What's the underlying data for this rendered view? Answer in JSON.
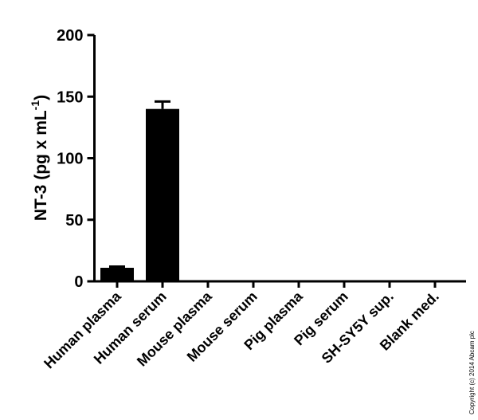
{
  "chart_data": {
    "type": "bar",
    "y_label_parts": [
      "NT-3 (pg x mL",
      "-1",
      ")"
    ],
    "categories": [
      "Human plasma",
      "Human serum",
      "Mouse plasma",
      "Mouse serum",
      "Pig plasma",
      "Pig serum",
      "SH-SY5Y sup.",
      "Blank med."
    ],
    "values": [
      11,
      140,
      0,
      0,
      0,
      0,
      0,
      0
    ],
    "errors": [
      1,
      6,
      0,
      0,
      0,
      0,
      0,
      0
    ],
    "color": "#000000",
    "ylim": [
      0,
      200
    ],
    "yticks": [
      0,
      50,
      100,
      150,
      200
    ],
    "grid": false,
    "copyright": "Copyright (c) 2014 Abcam plc"
  }
}
